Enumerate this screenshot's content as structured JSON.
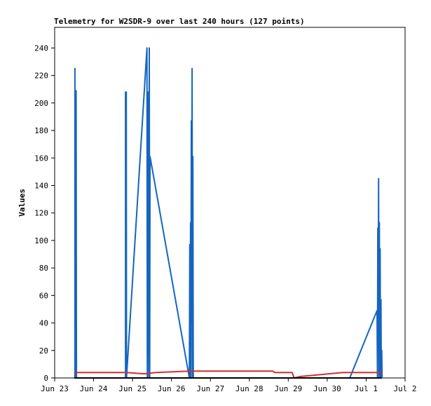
{
  "chart_data": {
    "type": "line",
    "title": "Telemetry for W2SDR-9 over last 240 hours (127 points)",
    "xlabel": "",
    "ylabel": "Values",
    "x_range": [
      0,
      9
    ],
    "ylim": [
      0,
      255
    ],
    "x_ticks": [
      {
        "x": 0,
        "label": "Jun 23"
      },
      {
        "x": 1,
        "label": "Jun 24"
      },
      {
        "x": 2,
        "label": "Jun 25"
      },
      {
        "x": 3,
        "label": "Jun 26"
      },
      {
        "x": 4,
        "label": "Jun 27"
      },
      {
        "x": 5,
        "label": "Jun 28"
      },
      {
        "x": 6,
        "label": "Jun 29"
      },
      {
        "x": 7,
        "label": "Jun 30"
      },
      {
        "x": 8,
        "label": "Jul 1"
      },
      {
        "x": 9,
        "label": "Jul 2"
      }
    ],
    "y_ticks": [
      0,
      20,
      40,
      60,
      80,
      100,
      120,
      140,
      160,
      180,
      200,
      220,
      240
    ],
    "grid": false,
    "legend": "none",
    "series": [
      {
        "color": "#1565c0",
        "points": [
          [
            0.52,
            0
          ],
          [
            0.52,
            225
          ],
          [
            0.53,
            0
          ],
          [
            0.54,
            193
          ],
          [
            0.545,
            0
          ],
          [
            0.55,
            209
          ],
          [
            0.56,
            0
          ],
          [
            1.82,
            0
          ],
          [
            1.82,
            208
          ],
          [
            1.84,
            208
          ],
          [
            1.845,
            0
          ],
          [
            2.37,
            240
          ],
          [
            2.38,
            0
          ],
          [
            2.4,
            208
          ],
          [
            2.42,
            0
          ],
          [
            2.43,
            240
          ],
          [
            2.44,
            0
          ],
          [
            2.45,
            161
          ],
          [
            3.46,
            0
          ],
          [
            3.47,
            97
          ],
          [
            3.48,
            0
          ],
          [
            3.49,
            113
          ],
          [
            3.5,
            0
          ],
          [
            3.51,
            187
          ],
          [
            3.52,
            40
          ],
          [
            3.53,
            225
          ],
          [
            3.54,
            0
          ],
          [
            3.55,
            161
          ],
          [
            3.56,
            0
          ],
          [
            7.58,
            0
          ],
          [
            8.28,
            49
          ],
          [
            8.29,
            0
          ],
          [
            8.3,
            109
          ],
          [
            8.31,
            37
          ],
          [
            8.32,
            145
          ],
          [
            8.33,
            0
          ],
          [
            8.34,
            113
          ],
          [
            8.35,
            0
          ],
          [
            8.36,
            94
          ],
          [
            8.37,
            0
          ],
          [
            8.38,
            57
          ],
          [
            8.39,
            0
          ],
          [
            8.4,
            20
          ],
          [
            8.41,
            0
          ]
        ]
      },
      {
        "color": "#d32f2f",
        "points": [
          [
            0.5,
            4
          ],
          [
            1.85,
            4
          ],
          [
            2.3,
            3
          ],
          [
            2.6,
            4
          ],
          [
            3.5,
            5
          ],
          [
            5.6,
            5
          ],
          [
            5.65,
            4
          ],
          [
            6.1,
            4
          ],
          [
            6.15,
            0
          ],
          [
            6.3,
            1
          ],
          [
            7.4,
            4
          ],
          [
            8.4,
            4
          ]
        ]
      },
      {
        "color": "#000000",
        "points": [
          [
            0.5,
            0
          ],
          [
            8.4,
            0
          ]
        ]
      }
    ]
  }
}
